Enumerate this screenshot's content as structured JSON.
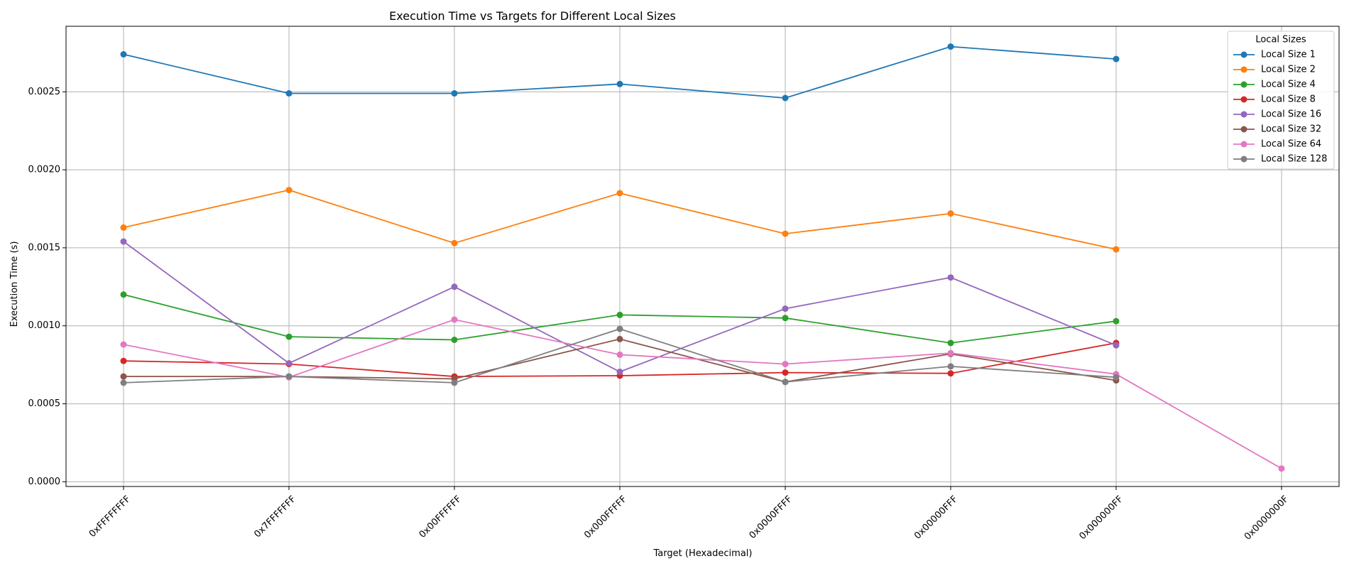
{
  "chart_data": {
    "type": "line",
    "title": "Execution Time vs Targets for Different Local Sizes",
    "xlabel": "Target (Hexadecimal)",
    "ylabel": "Execution Time (s)",
    "categories": [
      "0xFFFFFFFF",
      "0x7FFFFFFF",
      "0x00FFFFFF",
      "0x000FFFFF",
      "0x0000FFFF",
      "0x00000FFF",
      "0x000000FF",
      "0x0000000F"
    ],
    "ylim": [
      -3e-05,
      0.00292
    ],
    "yticks": [
      0.0,
      0.0005,
      0.001,
      0.0015,
      0.002,
      0.0025
    ],
    "ytick_labels": [
      "0.0000",
      "0.0005",
      "0.0010",
      "0.0015",
      "0.0020",
      "0.0025"
    ],
    "grid": true,
    "legend": {
      "title": "Local Sizes",
      "placement": "top-right"
    },
    "series": [
      {
        "name": "Local Size 1",
        "color": "#1f77b4",
        "values": [
          0.00274,
          0.00249,
          0.00249,
          0.00255,
          0.00246,
          0.00279,
          0.00271,
          null
        ]
      },
      {
        "name": "Local Size 2",
        "color": "#ff7f0e",
        "values": [
          0.00163,
          0.00187,
          0.00153,
          0.00185,
          0.00159,
          0.00172,
          0.00149,
          null
        ]
      },
      {
        "name": "Local Size 4",
        "color": "#2ca02c",
        "values": [
          0.0012,
          0.00093,
          0.00091,
          0.00107,
          0.00105,
          0.00089,
          0.00103,
          null
        ]
      },
      {
        "name": "Local Size 8",
        "color": "#d62728",
        "values": [
          0.000775,
          0.000755,
          0.000675,
          0.00068,
          0.0007,
          0.000695,
          0.00089,
          null
        ]
      },
      {
        "name": "Local Size 16",
        "color": "#9467bd",
        "values": [
          0.00154,
          0.00076,
          0.00125,
          0.000705,
          0.00111,
          0.00131,
          0.000875,
          null
        ]
      },
      {
        "name": "Local Size 32",
        "color": "#8c564b",
        "values": [
          0.000675,
          0.000675,
          0.00066,
          0.000915,
          0.00064,
          0.00082,
          0.00065,
          null
        ]
      },
      {
        "name": "Local Size 64",
        "color": "#e377c2",
        "values": [
          0.00088,
          0.00067,
          0.00104,
          0.000815,
          0.000755,
          0.000825,
          0.00069,
          8.5e-05
        ]
      },
      {
        "name": "Local Size 128",
        "color": "#7f7f7f",
        "values": [
          0.000635,
          0.000675,
          0.000635,
          0.00098,
          0.00064,
          0.00074,
          0.00067,
          null
        ]
      }
    ]
  }
}
